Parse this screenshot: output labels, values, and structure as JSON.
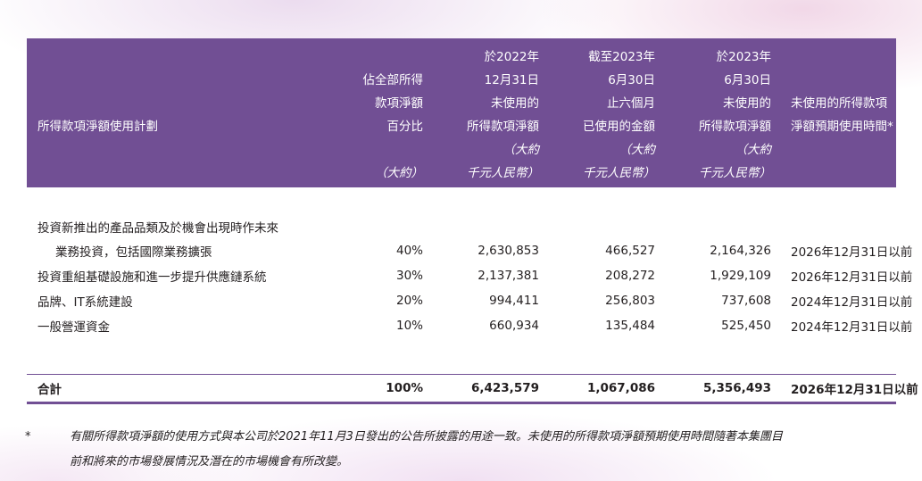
{
  "table": {
    "headers": [
      {
        "lines": [
          "所得款項淨額使用計劃"
        ]
      },
      {
        "lines": [
          "佔全部所得",
          "款項淨額",
          "百分比",
          "",
          "（大約）"
        ]
      },
      {
        "lines": [
          "於2022年",
          "12月31日",
          "未使用的",
          "所得款項淨額",
          "（大約",
          "千元人民幣）"
        ]
      },
      {
        "lines": [
          "截至2023年",
          "6月30日",
          "止六個月",
          "已使用的金額",
          "（大約",
          "千元人民幣）"
        ]
      },
      {
        "lines": [
          "於2023年",
          "6月30日",
          "未使用的",
          "所得款項淨額",
          "（大約",
          "千元人民幣）"
        ]
      },
      {
        "lines": [
          "未使用的所得款項",
          "淨額預期使用時間*"
        ]
      }
    ],
    "rows": [
      {
        "desc_line1": "投資新推出的產品品類及於機會出現時作未來",
        "desc": "業務投資，包括國際業務擴張",
        "pct": "40%",
        "unused_2022": "2,630,853",
        "used_h1_2023": "466,527",
        "unused_2023": "2,164,326",
        "time": "2026年12月31日以前"
      },
      {
        "desc": "投資重組基礎設施和進一步提升供應鏈系統",
        "pct": "30%",
        "unused_2022": "2,137,381",
        "used_h1_2023": "208,272",
        "unused_2023": "1,929,109",
        "time": "2026年12月31日以前"
      },
      {
        "desc": "品牌、IT系統建設",
        "pct": "20%",
        "unused_2022": "994,411",
        "used_h1_2023": "256,803",
        "unused_2023": "737,608",
        "time": "2024年12月31日以前"
      },
      {
        "desc": "一般營運資金",
        "pct": "10%",
        "unused_2022": "660,934",
        "used_h1_2023": "135,484",
        "unused_2023": "525,450",
        "time": "2024年12月31日以前"
      }
    ],
    "total": {
      "desc": "合計",
      "pct": "100%",
      "unused_2022": "6,423,579",
      "used_h1_2023": "1,067,086",
      "unused_2023": "5,356,493",
      "time": "2026年12月31日以前"
    }
  },
  "footnote": {
    "marker": "*",
    "line1": "有關所得款項淨額的使用方式與本公司於2021年11月3日發出的公告所披露的用途一致。未使用的所得款項淨額預期使用時間隨著本集團目",
    "line2": "前和將來的市場發展情況及潛在的市場機會有所改變。"
  },
  "colors": {
    "header_bg": "#714f94",
    "rule": "#714f94"
  }
}
